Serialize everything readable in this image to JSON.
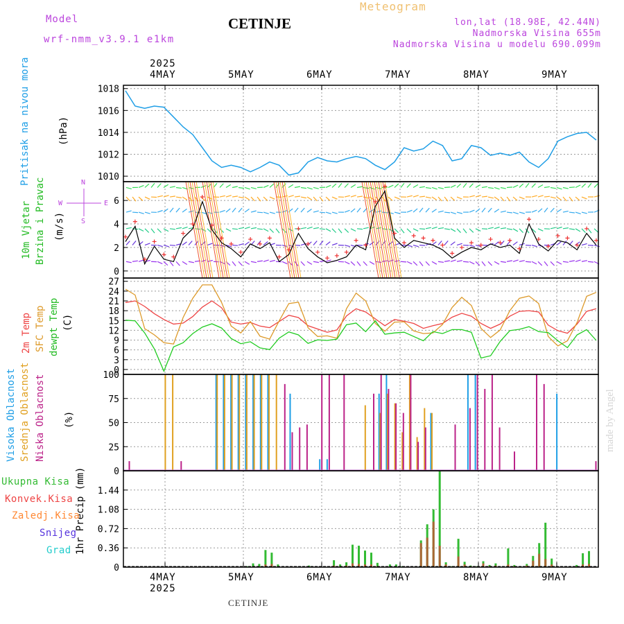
{
  "header": {
    "model_label": "Model",
    "model_value": "wrf-nmm_v3.9.1  e1km",
    "station_title": "CETINJE",
    "product": "Meteogram",
    "lonlat": "lon,lat (18.98E, 42.44N)",
    "elevation": "Nadmorska Visina 655m",
    "model_elevation": "Nadmorska Visina u modelu 690.099m"
  },
  "footer": {
    "station": "CETINJE",
    "credit": "made by Angel"
  },
  "x_axis": {
    "year_top": "2025",
    "year_bottom": "2025",
    "days": [
      "4MAY",
      "5MAY",
      "6MAY",
      "7MAY",
      "8MAY",
      "9MAY"
    ]
  },
  "colors": {
    "pressure": "#1e9ee6",
    "wind_axis": "#22bb22",
    "temp2m": "#ee4444",
    "sfc_temp": "#dd9a2a",
    "dewpt": "#22cc22",
    "cloud_high": "#1e9ee6",
    "cloud_mid": "#e0a020",
    "cloud_low": "#bb2288",
    "precip_total": "#33bb33",
    "precip_conv": "#ee4444",
    "precip_strat": "#ff8833",
    "snow": "#5533dd",
    "hail": "#22cccc",
    "compass": "#bb44dd"
  },
  "labels": {
    "pressure": "Pritisak na nivou mora",
    "pressure_unit": "(hPa)",
    "wind1": "10m Vjetar",
    "wind2": "Brzina i Pravac",
    "wind_unit": "(m/s)",
    "temp2m": "2m Temp",
    "sfc_temp": "SFC Temp",
    "dewpt": "dewpt Temp",
    "temp_unit": "(C)",
    "cloud_high": "Visoka Oblacnost",
    "cloud_mid": "Srednja Oblacnost",
    "cloud_low": "Niska Oblacnost",
    "cloud_unit": "(%)",
    "precip_unit": "1hr Precip (mm)",
    "precip_total": "Ukupna Kisa",
    "precip_conv": "Konvek.Kisa",
    "precip_strat": "Zaledj.Kisa",
    "snow": "Snijeg",
    "hail": "Grad",
    "compass_n": "N",
    "compass_s": "S",
    "compass_w": "W",
    "compass_e": "E"
  },
  "chart_data": [
    {
      "type": "line",
      "title": "Pritisak na nivou mora",
      "ylabel": "(hPa)",
      "x_start": "4MAY 00",
      "x_step_hours": 3,
      "ylim": [
        1009.5,
        1018.3
      ],
      "yticks": [
        1010,
        1012,
        1014,
        1016,
        1018
      ],
      "series": [
        {
          "name": "Pritisak na nivou mora",
          "values": [
            1017.8,
            1016.4,
            1016.2,
            1016.4,
            1016.3,
            1015.4,
            1014.5,
            1013.8,
            1012.6,
            1011.4,
            1010.8,
            1011.0,
            1010.8,
            1010.4,
            1010.8,
            1011.3,
            1011.0,
            1010.1,
            1010.3,
            1011.3,
            1011.7,
            1011.4,
            1011.3,
            1011.6,
            1011.8,
            1011.6,
            1011.0,
            1010.6,
            1011.3,
            1012.6,
            1012.3,
            1012.5,
            1013.2,
            1012.8,
            1011.4,
            1011.6,
            1012.8,
            1012.6,
            1011.9,
            1012.1,
            1011.9,
            1012.2,
            1011.3,
            1010.8,
            1011.6,
            1013.2,
            1013.6,
            1013.9,
            1014.0,
            1013.3
          ]
        }
      ]
    },
    {
      "type": "line",
      "title": "10m Vjetar Brzina i Pravac",
      "ylabel": "(m/s)",
      "ylim": [
        -0.6,
        7.6
      ],
      "yticks": [
        0,
        2,
        4,
        6
      ],
      "series": [
        {
          "name": "Brzina",
          "values": [
            2.5,
            3.8,
            0.6,
            2.1,
            1.0,
            0.8,
            2.8,
            3.6,
            5.9,
            3.5,
            2.4,
            1.9,
            1.2,
            2.3,
            1.9,
            2.4,
            0.8,
            1.4,
            3.2,
            1.9,
            1.2,
            0.7,
            0.9,
            1.2,
            2.2,
            1.8,
            5.5,
            6.8,
            2.8,
            2.0,
            2.6,
            2.4,
            2.2,
            1.8,
            1.1,
            1.6,
            2.0,
            1.8,
            2.3,
            2.0,
            2.2,
            1.5,
            4.0,
            2.3,
            1.7,
            2.6,
            2.4,
            1.8,
            3.2,
            2.2
          ]
        }
      ]
    },
    {
      "type": "line",
      "title": "2m Temp / SFC Temp / dewpt Temp",
      "ylabel": "(C)",
      "ylim": [
        -1.5,
        28
      ],
      "yticks": [
        0,
        3,
        6,
        9,
        12,
        15,
        18,
        21,
        24,
        27
      ],
      "series": [
        {
          "name": "2m Temp",
          "values": [
            20.5,
            21.0,
            19.3,
            17.1,
            15.3,
            13.9,
            14.2,
            16.2,
            19.1,
            21.0,
            18.9,
            14.5,
            13.9,
            14.4,
            13.3,
            12.8,
            14.7,
            16.6,
            15.9,
            13.4,
            12.4,
            11.4,
            12.1,
            16.4,
            18.6,
            17.6,
            15.5,
            13.4,
            15.3,
            14.8,
            14.1,
            12.6,
            13.4,
            14.1,
            16.0,
            17.2,
            16.3,
            14.1,
            12.6,
            13.9,
            16.3,
            17.8,
            18.0,
            17.6,
            13.6,
            11.9,
            11.1,
            13.9,
            17.8,
            18.6
          ]
        },
        {
          "name": "SFC Temp",
          "values": [
            24.6,
            22.8,
            12.5,
            10.6,
            8.2,
            7.8,
            15.9,
            21.8,
            25.9,
            25.9,
            20.5,
            13.3,
            11.2,
            14.7,
            10.2,
            9.3,
            14.9,
            20.2,
            20.6,
            12.8,
            10.1,
            10.3,
            9.6,
            18.6,
            23.4,
            21.0,
            14.1,
            11.7,
            14.5,
            14.6,
            11.8,
            11.0,
            11.2,
            13.8,
            19.0,
            22.1,
            19.6,
            12.6,
            9.8,
            12.1,
            18.0,
            21.8,
            22.5,
            20.2,
            10.1,
            7.2,
            8.8,
            14.4,
            22.4,
            23.6
          ]
        },
        {
          "name": "dewpt Temp",
          "values": [
            15.1,
            14.9,
            11.2,
            6.3,
            -0.5,
            6.9,
            8.2,
            11.0,
            13.0,
            14.0,
            12.7,
            9.5,
            7.9,
            8.5,
            6.6,
            6.1,
            9.6,
            11.5,
            10.6,
            8.0,
            9.1,
            8.9,
            9.3,
            13.7,
            14.2,
            11.6,
            14.9,
            10.8,
            11.2,
            11.4,
            10.1,
            8.8,
            11.6,
            11.0,
            12.2,
            12.2,
            11.4,
            3.5,
            4.2,
            8.6,
            11.9,
            12.3,
            13.1,
            11.6,
            11.3,
            8.8,
            6.7,
            10.6,
            12.2,
            8.9
          ]
        }
      ]
    },
    {
      "type": "bar",
      "title": "Visoka / Srednja / Niska Oblacnost",
      "ylabel": "(%)",
      "ylim": [
        0,
        100
      ],
      "yticks": [
        0,
        25,
        50,
        75,
        100
      ],
      "series": [
        {
          "name": "Visoka Oblacnost",
          "values": [
            0,
            0,
            0,
            0,
            0,
            0,
            0,
            0,
            0,
            0,
            0,
            0,
            100,
            100,
            100,
            100,
            100,
            100,
            100,
            100,
            0,
            0,
            80,
            0,
            0,
            0,
            12,
            12,
            0,
            0,
            0,
            0,
            0,
            0,
            80,
            100,
            0,
            0,
            0,
            0,
            0,
            60,
            0,
            0,
            0,
            0,
            100,
            100,
            0,
            0,
            0,
            0,
            0,
            0,
            0,
            0,
            0,
            0,
            80,
            0,
            0,
            0,
            0,
            0
          ]
        },
        {
          "name": "Srednja Oblacnost",
          "values": [
            0,
            0,
            0,
            0,
            0,
            100,
            100,
            0,
            0,
            0,
            0,
            0,
            100,
            100,
            100,
            100,
            100,
            100,
            100,
            100,
            100,
            0,
            0,
            0,
            0,
            0,
            0,
            0,
            0,
            0,
            0,
            0,
            68,
            0,
            60,
            80,
            70,
            40,
            100,
            35,
            65,
            60,
            0,
            0,
            0,
            0,
            0,
            0,
            0,
            0,
            0,
            0,
            0,
            0,
            0,
            0,
            0,
            0,
            0,
            0,
            0,
            0,
            0,
            0
          ]
        },
        {
          "name": "Niska Oblacnost",
          "values": [
            10,
            0,
            0,
            0,
            0,
            0,
            0,
            10,
            0,
            0,
            0,
            0,
            0,
            0,
            0,
            0,
            0,
            0,
            0,
            0,
            0,
            90,
            40,
            45,
            48,
            0,
            100,
            100,
            0,
            100,
            0,
            0,
            0,
            80,
            100,
            85,
            70,
            60,
            100,
            30,
            45,
            0,
            0,
            0,
            48,
            0,
            65,
            100,
            85,
            100,
            45,
            0,
            20,
            0,
            0,
            100,
            90,
            0,
            0,
            0,
            0,
            0,
            0,
            10
          ]
        }
      ]
    },
    {
      "type": "bar",
      "title": "1hr Precip (mm)",
      "ylabel": "1hr Precip (mm)",
      "ylim": [
        0,
        1.8
      ],
      "yticks": [
        0,
        0.36,
        0.72,
        1.08,
        1.44
      ],
      "series": [
        {
          "name": "Ukupna Kisa",
          "values": [
            0,
            0,
            0,
            0,
            0,
            0,
            0,
            0,
            0,
            0,
            0,
            0,
            0,
            0,
            0,
            0,
            0,
            0,
            0,
            0.02,
            0.07,
            0.06,
            0.32,
            0.27,
            0.05,
            0,
            0,
            0,
            0,
            0.03,
            0,
            0,
            0,
            0.13,
            0.05,
            0.09,
            0.42,
            0.4,
            0.31,
            0.27,
            0.08,
            0,
            0.05,
            0.05,
            0.02,
            0,
            0,
            0.5,
            0.8,
            1.08,
            1.79,
            0.09,
            0.02,
            0.53,
            0.1,
            0.03,
            0.02,
            0.11,
            0.04,
            0.07,
            0,
            0.35,
            0.04,
            0.02,
            0.06,
            0.21,
            0.45,
            0.83,
            0.16,
            0.01,
            0,
            0,
            0.04,
            0.26,
            0.3,
            0
          ]
        },
        {
          "name": "Konvek.Kisa",
          "values": [
            0,
            0,
            0,
            0,
            0,
            0,
            0,
            0,
            0,
            0,
            0,
            0,
            0,
            0,
            0,
            0,
            0,
            0,
            0,
            0,
            0.02,
            0.01,
            0.05,
            0.06,
            0.02,
            0,
            0,
            0,
            0,
            0.01,
            0,
            0,
            0,
            0.03,
            0.02,
            0.03,
            0.07,
            0.06,
            0.05,
            0.05,
            0.02,
            0,
            0.01,
            0.01,
            0,
            0,
            0,
            0.45,
            0.55,
            0.85,
            0.4,
            0.05,
            0.01,
            0.2,
            0.05,
            0.02,
            0.01,
            0.07,
            0.02,
            0.03,
            0,
            0.05,
            0.02,
            0.01,
            0.03,
            0.12,
            0.25,
            0.15,
            0.05,
            0,
            0,
            0,
            0.01,
            0.05,
            0.06,
            0
          ]
        }
      ]
    }
  ]
}
